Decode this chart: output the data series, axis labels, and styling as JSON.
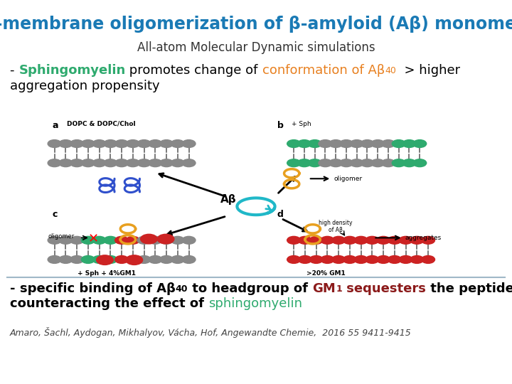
{
  "title": "In-membrane oligomerization of β-amyloid (Aβ) monomers",
  "title_color": "#1a7ab5",
  "subtitle": "All-atom Molecular Dynamic simulations",
  "subtitle_color": "#333333",
  "line2": "aggregation propensity",
  "line2_color": "#000000",
  "citation": "Amaro, Šachl, Aydogan, Mikhalyov, Vácha, Hof, Angewandte Chemie,  2016 55 9411-9415",
  "citation_color": "#444444",
  "bg_color": "#ffffff",
  "separator_color": "#a0b8c8"
}
